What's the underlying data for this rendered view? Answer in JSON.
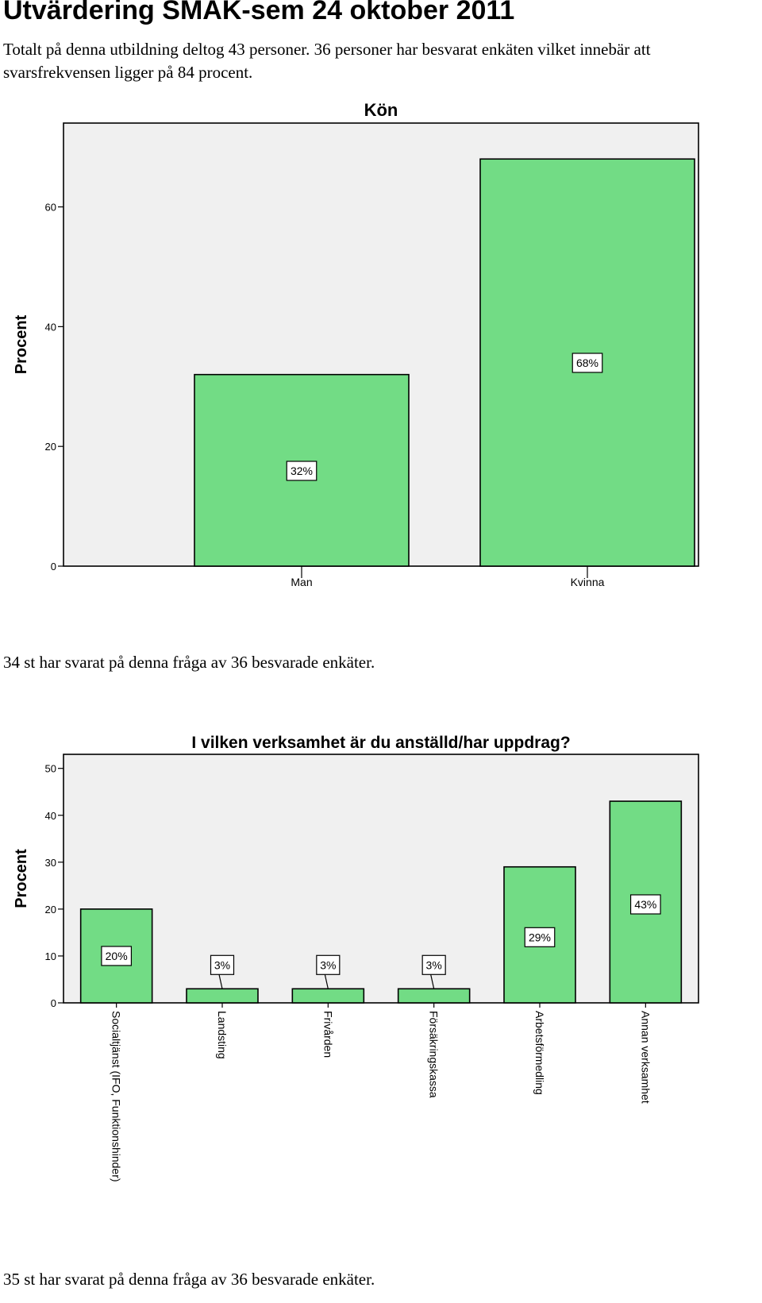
{
  "page": {
    "title": "Utvärdering SMAK-sem 24 oktober 2011",
    "intro": "Totalt på denna utbildning deltog 43 personer. 36 personer har besvarat enkäten vilket innebär att svarsfrekvensen ligger på 84 procent."
  },
  "notes": {
    "chart1": "34 st har svarat på denna fråga av 36 besvarade enkäter.",
    "chart2": "35 st har svarat på denna fråga av 36 besvarade enkäter."
  },
  "colors": {
    "bar": "#72DC85",
    "plot_bg": "#F0F0F0"
  },
  "chart_data": [
    {
      "type": "bar",
      "title": "Kön",
      "ylabel": "Procent",
      "xlabel": "",
      "categories": [
        "Man",
        "Kvinna"
      ],
      "values": [
        32,
        68
      ],
      "data_labels": [
        "32%",
        "68%"
      ],
      "ylim": [
        0,
        74
      ],
      "yticks": [
        0,
        20,
        40,
        60
      ],
      "grid": false,
      "legend": "none"
    },
    {
      "type": "bar",
      "title": "I vilken verksamhet är du anställd/har uppdrag?",
      "ylabel": "Procent",
      "xlabel": "",
      "categories": [
        "Socialtjänst (IFO, Funktionshinder)",
        "Landsting",
        "Frivården",
        "Försäkringskassa",
        "Arbetsförmedling",
        "Annan verksamhet"
      ],
      "values": [
        20,
        3,
        3,
        3,
        29,
        43
      ],
      "data_labels": [
        "20%",
        "3%",
        "3%",
        "3%",
        "29%",
        "43%"
      ],
      "ylim": [
        0,
        53
      ],
      "yticks": [
        0,
        10,
        20,
        30,
        40,
        50
      ],
      "grid": false,
      "legend": "none"
    }
  ]
}
